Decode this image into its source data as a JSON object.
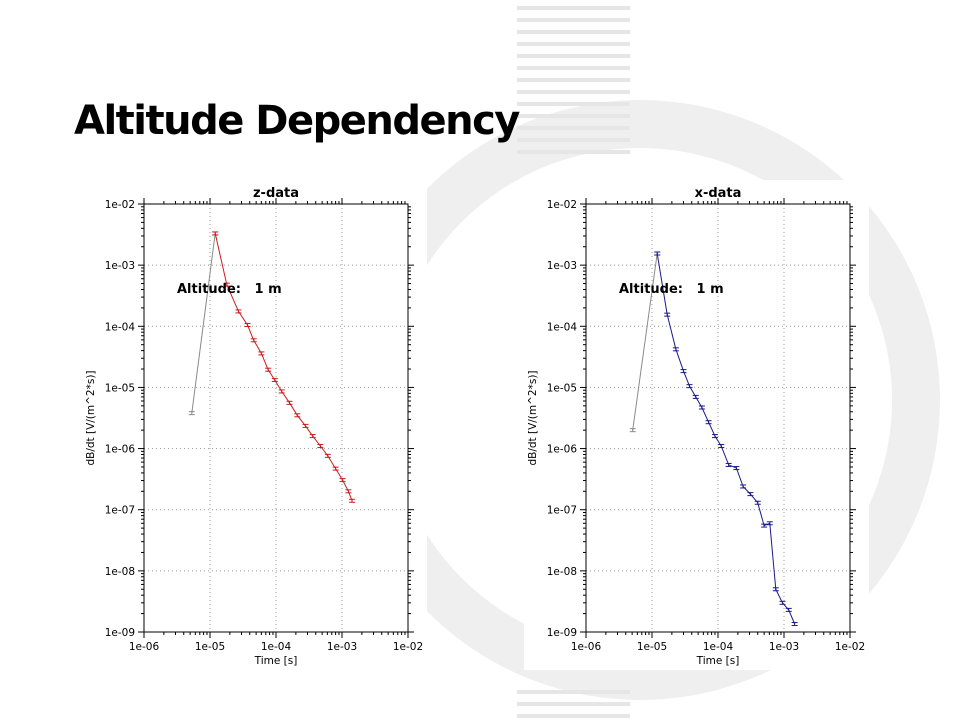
{
  "page": {
    "title": "Altitude Dependency"
  },
  "colors": {
    "red_series": "#c81e1e",
    "blue_series": "#1a1a8c",
    "gray_series": "#8a8a8a"
  },
  "chart_data": [
    {
      "type": "line",
      "title": "z-data",
      "xlabel": "Time [s]",
      "ylabel": "dB/dt [V/(m^2*s)]",
      "xscale": "log",
      "yscale": "log",
      "xlim": [
        1e-06,
        0.01
      ],
      "ylim": [
        1e-09,
        0.01
      ],
      "x_ticks": [
        "1e-06",
        "1e-05",
        "1e-04",
        "1e-03",
        "1e-02"
      ],
      "y_ticks": [
        "1e-02",
        "1e-03",
        "1e-04",
        "1e-05",
        "1e-06",
        "1e-07",
        "1e-08",
        "1e-09"
      ],
      "grid": true,
      "annotation": "Altitude:   1 m",
      "series": [
        {
          "color": "#8a8a8a",
          "markers": false,
          "x": [
            5.3e-06,
            1.2e-05
          ],
          "y": [
            3.8e-06,
            0.0033
          ]
        },
        {
          "color": "#c81e1e",
          "markers": true,
          "x": [
            1.2e-05,
            1.8e-05,
            2.7e-05,
            3.7e-05,
            4.6e-05,
            6e-05,
            7.6e-05,
            9.6e-05,
            0.000122,
            0.00016,
            0.00021,
            0.00028,
            0.00036,
            0.00047,
            0.00061,
            0.0008,
            0.00102,
            0.00125,
            0.00142
          ],
          "y": [
            0.0033,
            0.00048,
            0.000175,
            0.000105,
            5.9e-05,
            3.6e-05,
            1.95e-05,
            1.32e-05,
            8.6e-06,
            5.6e-06,
            3.5e-06,
            2.35e-06,
            1.6e-06,
            1.1e-06,
            7.6e-07,
            4.7e-07,
            3.05e-07,
            2e-07,
            1.4e-07
          ]
        }
      ]
    },
    {
      "type": "line",
      "title": "x-data",
      "xlabel": "Time [s]",
      "ylabel": "dB/dt [V/(m^2*s)]",
      "xscale": "log",
      "yscale": "log",
      "xlim": [
        1e-06,
        0.01
      ],
      "ylim": [
        1e-09,
        0.01
      ],
      "x_ticks": [
        "1e-06",
        "1e-05",
        "1e-04",
        "1e-03",
        "1e-02"
      ],
      "y_ticks": [
        "1e-02",
        "1e-03",
        "1e-04",
        "1e-05",
        "1e-06",
        "1e-07",
        "1e-08",
        "1e-09"
      ],
      "grid": true,
      "annotation": "Altitude:   1 m",
      "series": [
        {
          "color": "#8a8a8a",
          "markers": false,
          "x": [
            5.1e-06,
            1.2e-05
          ],
          "y": [
            2e-06,
            0.00155
          ]
        },
        {
          "color": "#1a1a8c",
          "markers": true,
          "x": [
            1.2e-05,
            1.7e-05,
            2.3e-05,
            3e-05,
            3.7e-05,
            4.6e-05,
            5.7e-05,
            7.2e-05,
            9e-05,
            0.000112,
            0.000145,
            0.00019,
            0.00024,
            0.00031,
            0.0004,
            0.0005,
            0.00061,
            0.00075,
            0.00095,
            0.00118,
            0.00145
          ],
          "y": [
            0.00155,
            0.000155,
            4.2e-05,
            1.85e-05,
            1.05e-05,
            7e-06,
            4.7e-06,
            2.7e-06,
            1.6e-06,
            1.1e-06,
            5.4e-07,
            4.8e-07,
            2.4e-07,
            1.8e-07,
            1.3e-07,
            5.5e-08,
            6e-08,
            5e-09,
            3e-09,
            2.3e-09,
            1.35e-09
          ]
        }
      ]
    }
  ]
}
